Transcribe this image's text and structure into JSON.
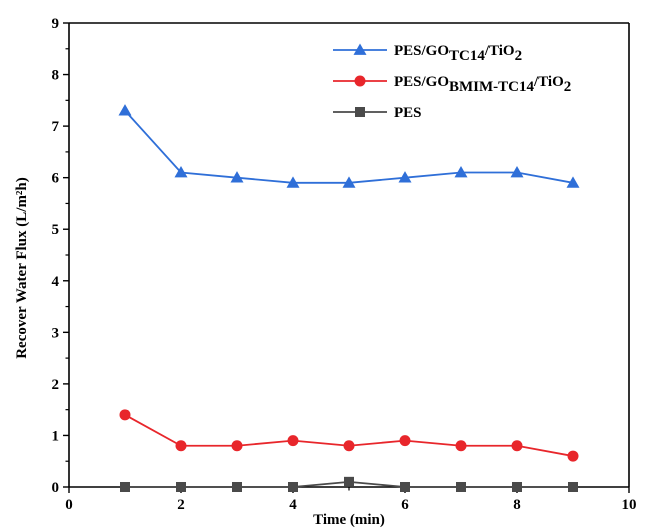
{
  "chart_data": {
    "type": "line",
    "title": "",
    "xlabel": "Time (min)",
    "ylabel": "Recover Water Flux (L/m²h)",
    "xlim": [
      0,
      10
    ],
    "ylim": [
      0,
      9
    ],
    "xticks": [
      0,
      2,
      4,
      6,
      8,
      10
    ],
    "yticks": [
      0,
      1,
      2,
      3,
      4,
      5,
      6,
      7,
      8,
      9
    ],
    "grid": false,
    "legend_position": "top-right",
    "x": [
      1,
      2,
      3,
      4,
      5,
      6,
      7,
      8,
      9
    ],
    "series": [
      {
        "name": "PES/GOTC14/TiO2",
        "legend_parts": {
          "base": "PES/GO",
          "sub1": "TC14",
          "mid": "/TiO",
          "sub2": "2"
        },
        "color": "#2f6fd8",
        "marker": "triangle",
        "values": [
          7.3,
          6.1,
          6.0,
          5.9,
          5.9,
          6.0,
          6.1,
          6.1,
          5.9
        ]
      },
      {
        "name": "PES/GOBMIM-TC14/TiO2",
        "legend_parts": {
          "base": "PES/GO",
          "sub1": "BMIM-TC14",
          "mid": "/TiO",
          "sub2": "2"
        },
        "color": "#e8262b",
        "marker": "circle",
        "values": [
          1.4,
          0.8,
          0.8,
          0.9,
          0.8,
          0.9,
          0.8,
          0.8,
          0.6
        ]
      },
      {
        "name": "PES",
        "legend_parts": {
          "base": "PES",
          "sub1": "",
          "mid": "",
          "sub2": ""
        },
        "color": "#4a4a4a",
        "marker": "square",
        "values": [
          0.0,
          0.0,
          0.0,
          0.0,
          0.1,
          0.0,
          0.0,
          0.0,
          0.0
        ]
      }
    ]
  }
}
